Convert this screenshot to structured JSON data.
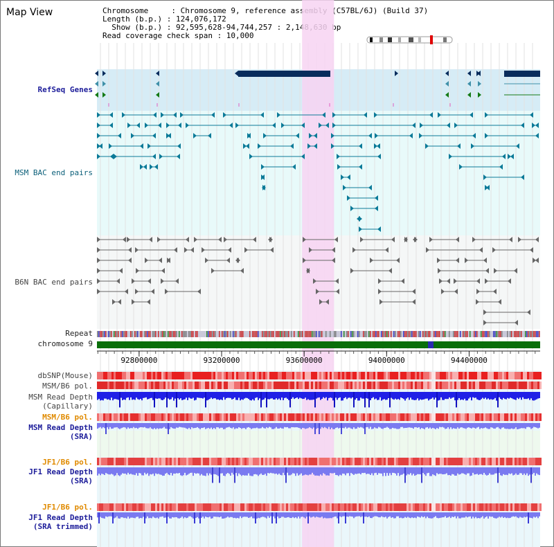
{
  "title": "Map View",
  "header": {
    "chromosome": "Chromosome     : Chromosome 9, reference assembly (C57BL/6J) (Build 37)",
    "length": "Length (b.p.) : 124,076,172",
    "show": "  Show (b.p.) : 92,595,628-94,744,257 : 2,148,630 bp",
    "coverage": "Read coverage check span : 10,000"
  },
  "view": {
    "start": 92595628,
    "end": 94744257
  },
  "tracks": {
    "refseq": "RefSeq Genes",
    "msm_bac": "MSM BAC end pairs",
    "b6n_bac": "B6N BAC end pairs",
    "repeat": "Repeat",
    "chromosome": "chromosome 9",
    "dbsnp": "dbSNP(Mouse)",
    "msm_b6_pol": "MSM/B6 pol.",
    "msm_depth_cap_1": "MSM Read Depth",
    "msm_depth_cap_2": "(Capillary)",
    "msm_b6_pol_2": "MSM/B6 pol.",
    "msm_depth_sra_1": "MSM Read Depth",
    "msm_depth_sra_2": "(SRA)",
    "jf1_b6_pol": "JF1/B6 pol.",
    "jf1_depth_sra_1": "JF1 Read Depth",
    "jf1_depth_sra_2": "(SRA)",
    "jf1_b6_pol_2": "JF1/B6 pol.",
    "jf1_depth_trim_1": "JF1 Read Depth",
    "jf1_depth_trim_2": "(SRA trimmed)"
  },
  "axis": {
    "ticks": [
      {
        "value": 92800000,
        "label": "92800000"
      },
      {
        "value": 93200000,
        "label": "93200000"
      },
      {
        "value": 93600000,
        "label": "93600000"
      },
      {
        "value": 94000000,
        "label": "94000000"
      },
      {
        "value": 94400000,
        "label": "94400000"
      }
    ]
  },
  "highlight": {
    "start": 93590000,
    "end": 93745000
  },
  "colors": {
    "refseq_bg": "#d6ecf6",
    "msm_bg": "#e8fafa",
    "b6n_bg": "#f5f7f7",
    "highlight": "#f7d4f2",
    "gene": "#082c5c",
    "msm_feature": "#0b7a98",
    "b6n_feature": "#666666",
    "chrom": "#0a6e0a",
    "depth_dark": "#2020e6",
    "depth_light": "#7a7af0"
  }
}
